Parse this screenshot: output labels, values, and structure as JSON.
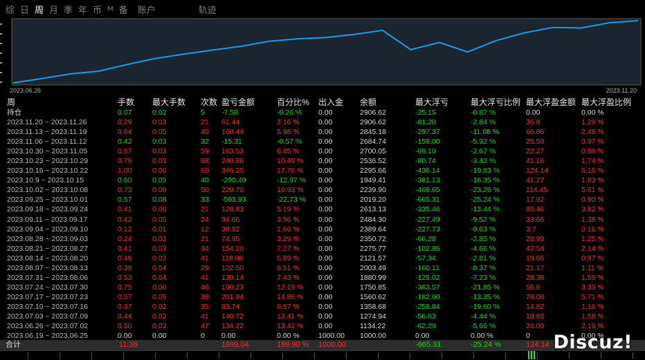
{
  "tabs": [
    {
      "label": "综"
    },
    {
      "label": "日"
    },
    {
      "label": "周"
    },
    {
      "label": "月"
    },
    {
      "label": "季"
    },
    {
      "label": "年"
    },
    {
      "label": "币"
    },
    {
      "label": "M"
    },
    {
      "label": "备"
    },
    {
      "label": "账户"
    }
  ],
  "trajectory_label": "轨迹",
  "chart_data": {
    "type": "line",
    "x_start_label": "2023.06.26",
    "x_end_label": "2023.11.20",
    "x": [
      "2023.06.19",
      "2023.06.26",
      "2023.07.03",
      "2023.07.10",
      "2023.07.17",
      "2023.07.24",
      "2023.07.31",
      "2023.08.07",
      "2023.08.14",
      "2023.08.21",
      "2023.08.28",
      "2023.09.04",
      "2023.09.11",
      "2023.09.18",
      "2023.09.25",
      "2023.10.02",
      "2023.10.09",
      "2023.10.16",
      "2023.10.23",
      "2023.10.30",
      "2023.11.06",
      "2023.11.13",
      "2023.11.20"
    ],
    "values": [
      1000.0,
      1134.22,
      1274.94,
      1358.68,
      1560.62,
      1750.85,
      1880.99,
      2003.49,
      2121.57,
      2275.77,
      2350.72,
      2389.64,
      2484.3,
      2613.13,
      2019.2,
      2239.9,
      1949.41,
      2295.66,
      2536.52,
      2700.05,
      2684.74,
      2845.18,
      2906.62
    ],
    "color": "#1e9be6",
    "grid": false
  },
  "columns": [
    "周",
    "手数",
    "最大手数",
    "次数",
    "盈亏金额",
    "百分比%",
    "出入金",
    "余额",
    "最大浮亏",
    "最大浮亏比例",
    "最大浮盈金额",
    "最大浮盈比例"
  ],
  "position_row": {
    "label": "持仓",
    "lots": "0.07",
    "max_lots": "0.02",
    "count": "5",
    "pnl": "-7.58",
    "pct": "-0.26 %",
    "flow": "0.00",
    "balance": "2906.62",
    "max_dd": "-25.15",
    "max_dd_pct": "-0.87 %",
    "max_fp": "0.00",
    "max_fp_pct": "0.00 %"
  },
  "rows": [
    {
      "week": "2023.11.20 ~ 2023.11.26",
      "lots": "0.29",
      "max_lots": "0.03",
      "count": "21",
      "pnl": "61.44",
      "pct": "2.16 %",
      "flow": "0.00",
      "balance": "2906.62",
      "max_dd": "-81.20",
      "max_dd_pct": "-2.84 %",
      "max_fp": "36.8",
      "max_fp_pct": "1.29 %",
      "gain": true
    },
    {
      "week": "2023.11.13 ~ 2023.11.19",
      "lots": "0.64",
      "max_lots": "0.05",
      "count": "40",
      "pnl": "160.44",
      "pct": "5.98 %",
      "flow": "0.00",
      "balance": "2845.18",
      "max_dd": "-297.37",
      "max_dd_pct": "-11.08 %",
      "max_fp": "66.86",
      "max_fp_pct": "2.48 %",
      "gain": true
    },
    {
      "week": "2023.11.06 ~ 2023.11.12",
      "lots": "0.42",
      "max_lots": "0.03",
      "count": "32",
      "pnl": "-15.31",
      "pct": "-0.57 %",
      "flow": "0.00",
      "balance": "2684.74",
      "max_dd": "-159.00",
      "max_dd_pct": "-5.92 %",
      "max_fp": "25.59",
      "max_fp_pct": "0.97 %",
      "gain": false
    },
    {
      "week": "2023.10.30 ~ 2023.11.05",
      "lots": "0.67",
      "max_lots": "0.03",
      "count": "59",
      "pnl": "163.53",
      "pct": "6.45 %",
      "flow": "0.00",
      "balance": "2700.05",
      "max_dd": "-69.10",
      "max_dd_pct": "-2.67 %",
      "max_fp": "22.27",
      "max_fp_pct": "0.88 %",
      "gain": true
    },
    {
      "week": "2023.10.23 ~ 2023.10.29",
      "lots": "0.79",
      "max_lots": "0.03",
      "count": "68",
      "pnl": "240.86",
      "pct": "10.49 %",
      "flow": "0.00",
      "balance": "2536.52",
      "max_dd": "-80.74",
      "max_dd_pct": "-3.42 %",
      "max_fp": "41.16",
      "max_fp_pct": "1.74 %",
      "gain": true
    },
    {
      "week": "2023.10.16 ~ 2023.10.22",
      "lots": "1.00",
      "max_lots": "0.06",
      "count": "69",
      "pnl": "346.25",
      "pct": "17.76 %",
      "flow": "0.00",
      "balance": "2295.66",
      "max_dd": "-436.14",
      "max_dd_pct": "-19.83 %",
      "max_fp": "124.14",
      "max_fp_pct": "6.16 %",
      "gain": true
    },
    {
      "week": "2023.10.9 ~ 2023.10.15",
      "lots": "0.60",
      "max_lots": "0.05",
      "count": "40",
      "pnl": "-290.49",
      "pct": "-12.97 %",
      "flow": "0.00",
      "balance": "1949.41",
      "max_dd": "-381.13",
      "max_dd_pct": "-16.35 %",
      "max_fp": "41.27",
      "max_fp_pct": "1.83 %",
      "gain": false
    },
    {
      "week": "2023.10.02 ~ 2023.10.08",
      "lots": "0.73",
      "max_lots": "0.08",
      "count": "50",
      "pnl": "220.70",
      "pct": "10.93 %",
      "flow": "0.00",
      "balance": "2239.90",
      "max_dd": "-469.65",
      "max_dd_pct": "-23.26 %",
      "max_fp": "114.45",
      "max_fp_pct": "5.61 %",
      "gain": true
    },
    {
      "week": "2023.09.25 ~ 2023.10.01",
      "lots": "0.57",
      "max_lots": "0.08",
      "count": "33",
      "pnl": "-593.93",
      "pct": "-22.73 %",
      "flow": "0.00",
      "balance": "2019.20",
      "max_dd": "-665.31",
      "max_dd_pct": "-25.24 %",
      "max_fp": "17.92",
      "max_fp_pct": "0.90 %",
      "gain": false
    },
    {
      "week": "2023.09.18 ~ 2023.09.24",
      "lots": "0.41",
      "max_lots": "0.06",
      "count": "21",
      "pnl": "128.83",
      "pct": "5.19 %",
      "flow": "0.00",
      "balance": "2613.13",
      "max_dd": "-335.46",
      "max_dd_pct": "-13.44 %",
      "max_fp": "95.46",
      "max_fp_pct": "3.82 %",
      "gain": true
    },
    {
      "week": "2023.09.11 ~ 2023.09.17",
      "lots": "0.42",
      "max_lots": "0.05",
      "count": "24",
      "pnl": "94.66",
      "pct": "3.96 %",
      "flow": "0.00",
      "balance": "2484.30",
      "max_dd": "-227.49",
      "max_dd_pct": "-9.52 %",
      "max_fp": "33.66",
      "max_fp_pct": "1.38 %",
      "gain": true
    },
    {
      "week": "2023.09.04 ~ 2023.09.10",
      "lots": "0.12",
      "max_lots": "0.01",
      "count": "12",
      "pnl": "38.92",
      "pct": "1.66 %",
      "flow": "0.00",
      "balance": "2389.64",
      "max_dd": "-227.73",
      "max_dd_pct": "-9.63 %",
      "max_fp": "3.7",
      "max_fp_pct": "0.16 %",
      "gain": true
    },
    {
      "week": "2023.08.28 ~ 2023.09.03",
      "lots": "0.24",
      "max_lots": "0.02",
      "count": "21",
      "pnl": "74.95",
      "pct": "3.29 %",
      "flow": "0.00",
      "balance": "2350.72",
      "max_dd": "-66.28",
      "max_dd_pct": "-2.85 %",
      "max_fp": "28.99",
      "max_fp_pct": "1.25 %",
      "gain": true
    },
    {
      "week": "2023.08.21 ~ 2023.08.27",
      "lots": "0.41",
      "max_lots": "0.03",
      "count": "34",
      "pnl": "154.20",
      "pct": "7.27 %",
      "flow": "0.00",
      "balance": "2275.77",
      "max_dd": "-102.86",
      "max_dd_pct": "-4.66 %",
      "max_fp": "47.54",
      "max_fp_pct": "2.14 %",
      "gain": true
    },
    {
      "week": "2023.08.14 ~ 2023.08.20",
      "lots": "0.46",
      "max_lots": "0.02",
      "count": "41",
      "pnl": "118.08",
      "pct": "5.89 %",
      "flow": "0.00",
      "balance": "2121.57",
      "max_dd": "-57.34",
      "max_dd_pct": "-2.81 %",
      "max_fp": "19.66",
      "max_fp_pct": "0.97 %",
      "gain": true
    },
    {
      "week": "2023.08.07 ~ 2023.08.13",
      "lots": "0.38",
      "max_lots": "0.04",
      "count": "29",
      "pnl": "122.50",
      "pct": "6.51 %",
      "flow": "0.00",
      "balance": "2003.49",
      "max_dd": "-160.11",
      "max_dd_pct": "-8.37 %",
      "max_fp": "21.17",
      "max_fp_pct": "1.11 %",
      "gain": true
    },
    {
      "week": "2023.07.31 ~ 2023.08.06",
      "lots": "0.53",
      "max_lots": "0.04",
      "count": "41",
      "pnl": "130.14",
      "pct": "7.43 %",
      "flow": "0.00",
      "balance": "1880.99",
      "max_dd": "-129.02",
      "max_dd_pct": "-7.23 %",
      "max_fp": "28.38",
      "max_fp_pct": "1.59 %",
      "gain": true
    },
    {
      "week": "2023.07.24 ~ 2023.07.30",
      "lots": "0.75",
      "max_lots": "0.06",
      "count": "46",
      "pnl": "190.23",
      "pct": "12.19 %",
      "flow": "0.00",
      "balance": "1750.85",
      "max_dd": "-363.57",
      "max_dd_pct": "-21.85 %",
      "max_fp": "56.6",
      "max_fp_pct": "3.39 %",
      "gain": true
    },
    {
      "week": "2023.07.17 ~ 2023.07.23",
      "lots": "0.57",
      "max_lots": "0.05",
      "count": "38",
      "pnl": "201.94",
      "pct": "14.86 %",
      "flow": "0.00",
      "balance": "1560.62",
      "max_dd": "-182.60",
      "max_dd_pct": "-13.35 %",
      "max_fp": "78.08",
      "max_fp_pct": "5.71 %",
      "gain": true
    },
    {
      "week": "2023.07.10 ~ 2023.07.16",
      "lots": "0.37",
      "max_lots": "0.02",
      "count": "35",
      "pnl": "83.74",
      "pct": "6.57 %",
      "flow": "0.00",
      "balance": "1358.68",
      "max_dd": "-258.84",
      "max_dd_pct": "-19.60 %",
      "max_fp": "14.82",
      "max_fp_pct": "1.16 %",
      "gain": true
    },
    {
      "week": "2023.07.03 ~ 2023.07.09",
      "lots": "0.44",
      "max_lots": "0.02",
      "count": "41",
      "pnl": "140.72",
      "pct": "12.41 %",
      "flow": "0.00",
      "balance": "1274.94",
      "max_dd": "-56.63",
      "max_dd_pct": "-4.44 %",
      "max_fp": "19.83",
      "max_fp_pct": "1.58 %",
      "gain": true
    },
    {
      "week": "2023.06.26 ~ 2023.07.02",
      "lots": "0.50",
      "max_lots": "0.02",
      "count": "47",
      "pnl": "134.22",
      "pct": "13.42 %",
      "flow": "0.00",
      "balance": "1134.22",
      "max_dd": "-62.29",
      "max_dd_pct": "-5.66 %",
      "max_fp": "24.09",
      "max_fp_pct": "2.19 %",
      "gain": true
    },
    {
      "week": "2023.06.19 ~ 2023.06.25",
      "lots": "0.00",
      "max_lots": "0.00",
      "count": "0",
      "pnl": "0.00",
      "pct": "0.00 %",
      "flow": "1000.00",
      "balance": "1000.00",
      "max_dd": "0.00",
      "max_dd_pct": "0.00 %",
      "max_fp": "0",
      "max_fp_pct": "0.00 %",
      "gain": null
    }
  ],
  "total_row": {
    "label": "合计",
    "lots": "11.38",
    "pnl": "1899.04",
    "pct": "189.90 %",
    "flow": "1000.00",
    "max_dd": "-665.31",
    "max_dd_pct": "-25.24 %",
    "max_fp": "124.14"
  },
  "watermark": "Discuz!",
  "colors": {
    "gain": "#ff2a2a",
    "loss": "#15d815",
    "line": "#1e9be6"
  }
}
